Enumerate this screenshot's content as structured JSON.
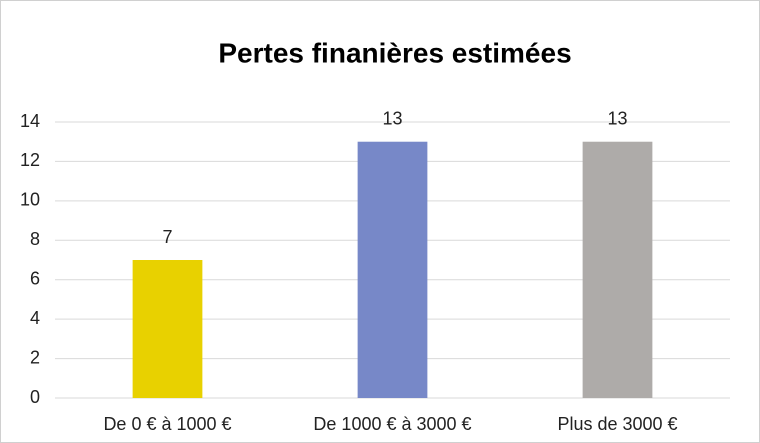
{
  "chart_data": {
    "type": "bar",
    "title": "Pertes finanières estimées",
    "categories": [
      "De 0 € à 1000 €",
      "De 1000 € à 3000 €",
      "Plus de 3000 €"
    ],
    "values": [
      7,
      13,
      13
    ],
    "colors": [
      "#e8d100",
      "#7788c8",
      "#aeaba9"
    ],
    "ylim": [
      0,
      14
    ],
    "yticks": [
      0,
      2,
      4,
      6,
      8,
      10,
      12,
      14
    ],
    "grid": true,
    "data_labels": true
  }
}
